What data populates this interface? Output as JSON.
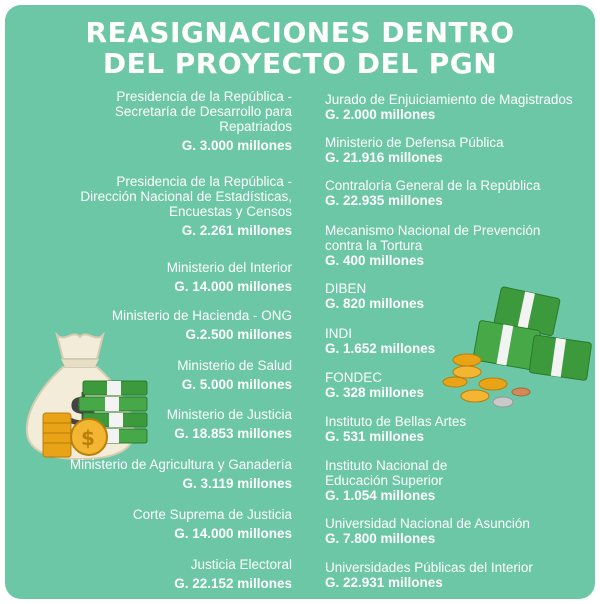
{
  "title": {
    "line1": "REASIGNACIONES DENTRO",
    "line2": "DEL PROYECTO DEL PGN"
  },
  "left_items": [
    {
      "name": "Presidencia de la República -\nSecretaría de Desarrollo para\nRepatriados",
      "amount": "G. 3.000 millones"
    },
    {
      "name": "Presidencia de la República -\nDirección Nacional de Estadísticas,\nEncuestas y Censos",
      "amount": "G. 2.261 millones"
    },
    {
      "name": "Ministerio del Interior",
      "amount": "G. 14.000 millones"
    },
    {
      "name": "Ministerio de Hacienda - ONG",
      "amount": "G.2.500 millones"
    },
    {
      "name": "Ministerio de Salud",
      "amount": "G. 5.000 millones"
    },
    {
      "name": "Ministerio de Justicia",
      "amount": "G. 18.853 millones"
    },
    {
      "name": "Ministerio de Agricultura y Ganadería",
      "amount": "G. 3.119 millones"
    },
    {
      "name": "Corte Suprema de Justicia",
      "amount": "G. 14.000 millones"
    },
    {
      "name": "Justicia Electoral",
      "amount": "G. 22.152 millones"
    }
  ],
  "right_items": [
    {
      "name": "Jurado de Enjuiciamiento de Magistrados",
      "amount": "G. 2.000 millones"
    },
    {
      "name": "Ministerio de Defensa Pública",
      "amount": "G. 21.916 millones"
    },
    {
      "name": "Contraloría General de la República",
      "amount": "G. 22.935 millones"
    },
    {
      "name": "Mecanismo Nacional de Prevención\n contra la Tortura",
      "amount": "G. 400 millones"
    },
    {
      "name": "DIBEN",
      "amount": "G. 820 millones"
    },
    {
      "name": "INDI",
      "amount": "G. 1.652 millones"
    },
    {
      "name": "FONDEC",
      "amount": "G. 328 millones"
    },
    {
      "name": "Instituto de Bellas Artes",
      "amount": "G. 531 millones"
    },
    {
      "name": "Instituto Nacional de\nEducación Superior",
      "amount": "G. 1.054 millones"
    },
    {
      "name": "Universidad Nacional de Asunción",
      "amount": "G. 7.800 millones"
    },
    {
      "name": "Universidades Públicas del Interior",
      "amount": "G. 22.931 millones"
    }
  ],
  "art": {
    "money_bag_symbol": "$",
    "coin_symbol": "$",
    "icons": [
      "money-bag-icon",
      "banknote-stack-icon",
      "coin-stack-icon"
    ]
  },
  "colors": {
    "background": "#6cc7a6",
    "text": "#ffffff",
    "money": "#3c9a3c",
    "gold": "#e8a317"
  }
}
